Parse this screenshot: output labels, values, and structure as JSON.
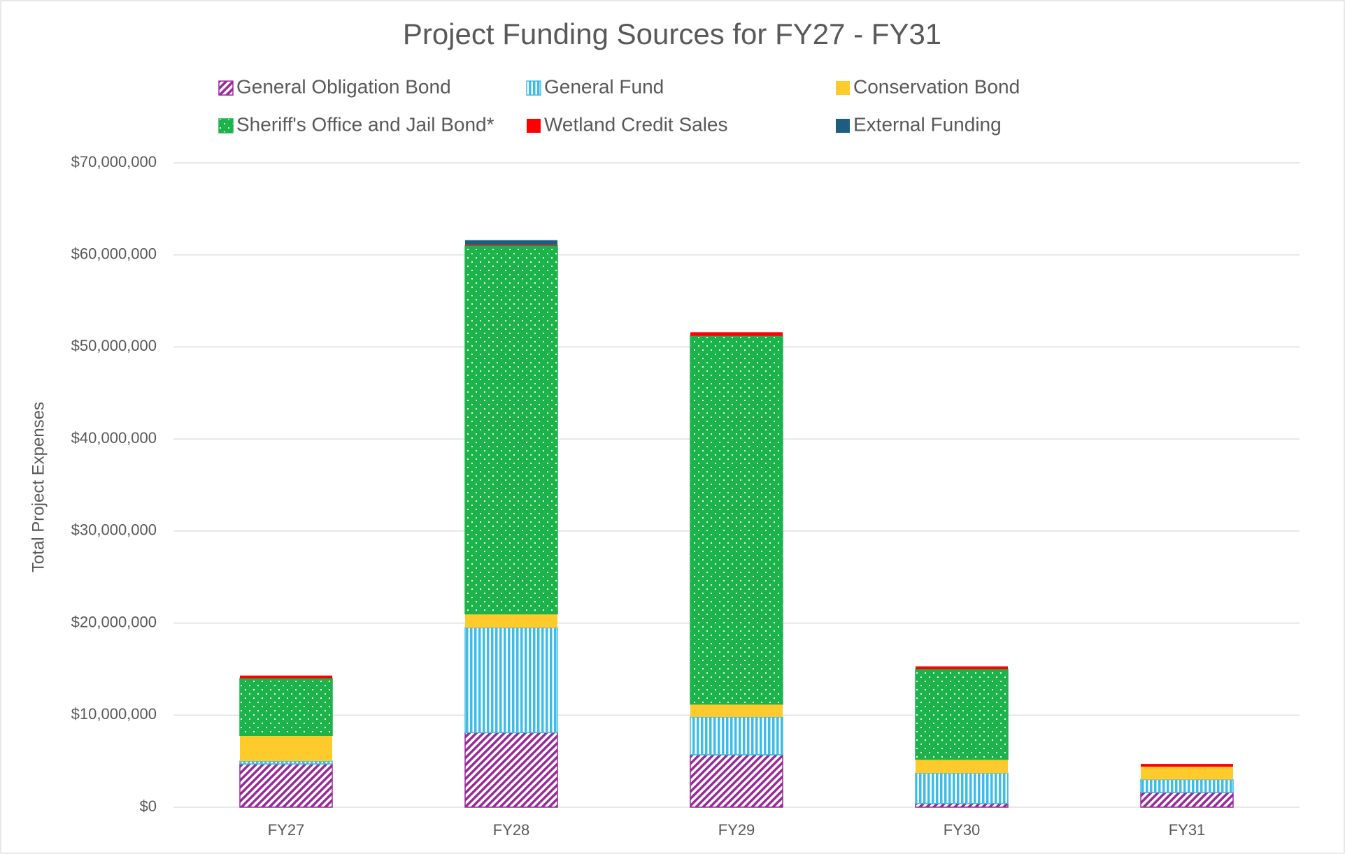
{
  "chart_data": {
    "type": "stacked_bar",
    "title": "Project Funding Sources for FY27 - FY31",
    "y_label": "Total Project Expenses",
    "categories": [
      "FY27",
      "FY28",
      "FY29",
      "FY30",
      "FY31"
    ],
    "series": [
      {
        "name": "General Obligation Bond",
        "color": "#97299a",
        "pattern": "diagonal",
        "values": [
          4700000,
          8100000,
          5700000,
          400000,
          1600000
        ]
      },
      {
        "name": "General Fund",
        "color": "#3cbde9",
        "pattern": "vertical",
        "values": [
          300000,
          11400000,
          4100000,
          3300000,
          1400000
        ]
      },
      {
        "name": "Conservation Bond",
        "color": "#ffca2c",
        "pattern": "solid",
        "values": [
          2800000,
          1500000,
          1400000,
          1500000,
          1400000
        ]
      },
      {
        "name": "Sheriff's Office and Jail Bond*",
        "color": "#1db34b",
        "pattern": "dots",
        "values": [
          6200000,
          40000000,
          40000000,
          9800000,
          0
        ]
      },
      {
        "name": "Wetland Credit Sales",
        "color": "#ff0000",
        "pattern": "solid",
        "values": [
          300000,
          100000,
          400000,
          300000,
          300000
        ]
      },
      {
        "name": "External Funding",
        "color": "#1b5e80",
        "pattern": "solid",
        "values": [
          0,
          500000,
          0,
          0,
          0
        ]
      }
    ],
    "ylim": [
      0,
      70000000
    ],
    "yticks": [
      {
        "value": 0,
        "label": "$0"
      },
      {
        "value": 10000000,
        "label": "$10,000,000"
      },
      {
        "value": 20000000,
        "label": "$20,000,000"
      },
      {
        "value": 30000000,
        "label": "$30,000,000"
      },
      {
        "value": 40000000,
        "label": "$40,000,000"
      },
      {
        "value": 50000000,
        "label": "$50,000,000"
      },
      {
        "value": 60000000,
        "label": "$60,000,000"
      },
      {
        "value": 70000000,
        "label": "$70,000,000"
      }
    ],
    "grid": true,
    "legend": "top"
  }
}
